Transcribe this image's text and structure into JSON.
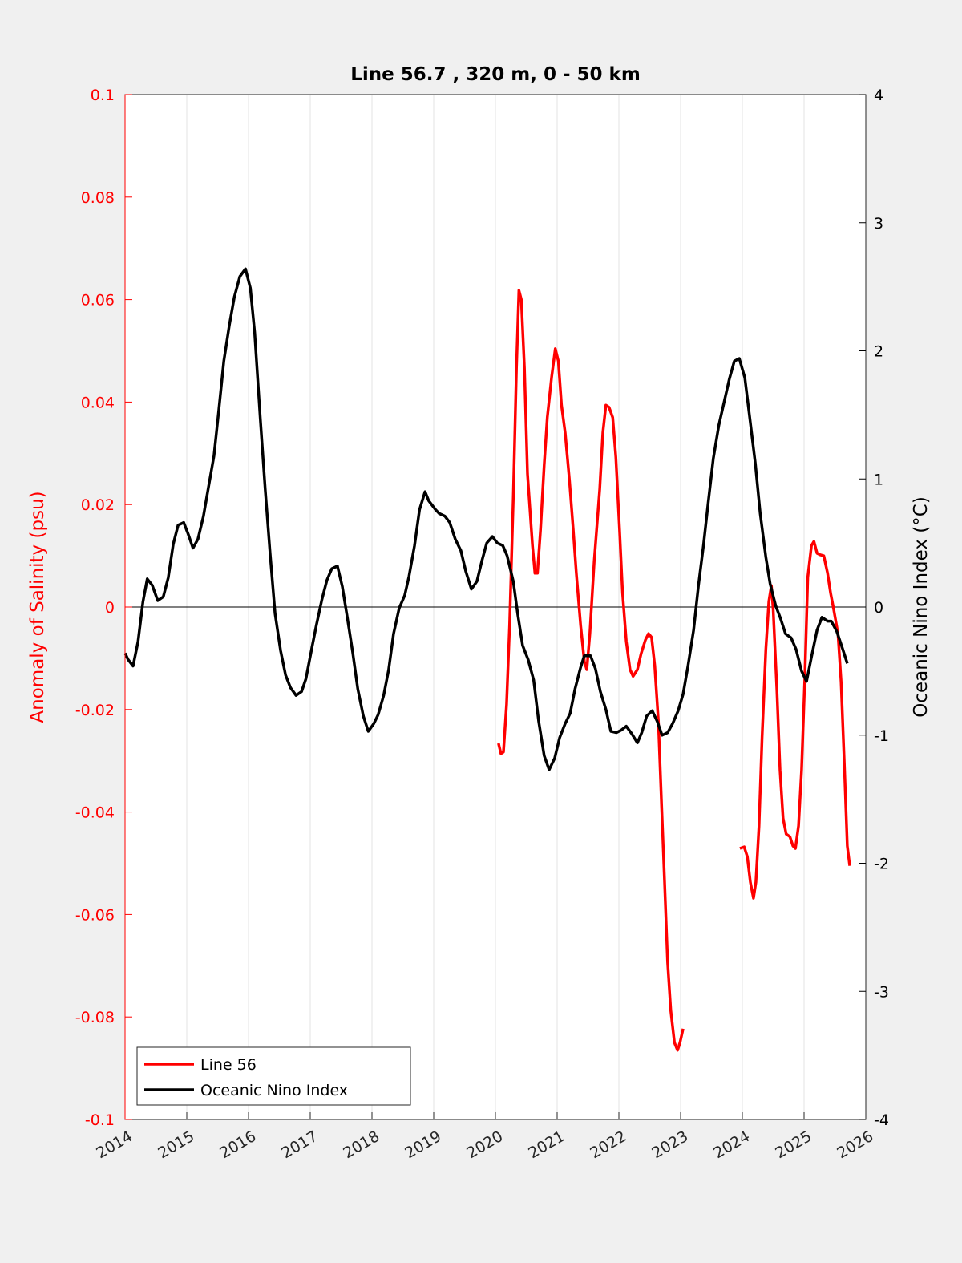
{
  "chart_data": {
    "type": "line",
    "title": "Line 56.7 , 320 m, 0 - 50 km",
    "xlabel": "",
    "ylabel_left": "Anomaly of Salinity (psu)",
    "ylabel_right": "Oceanic Nino Index (°C)",
    "xlim": [
      2014,
      2026
    ],
    "ylim_left": [
      -0.1,
      0.1
    ],
    "ylim_right": [
      -4,
      4
    ],
    "x_ticks": [
      "2014",
      "2015",
      "2016",
      "2017",
      "2018",
      "2019",
      "2020",
      "2021",
      "2022",
      "2023",
      "2024",
      "2025",
      "2026"
    ],
    "y_ticks_left": [
      "0.1",
      "0.08",
      "0.06",
      "0.04",
      "0.02",
      "0",
      "-0.02",
      "-0.04",
      "-0.06",
      "-0.08",
      "-0.1"
    ],
    "y_ticks_right": [
      "4",
      "3",
      "2",
      "1",
      "0",
      "-1",
      "-2",
      "-3",
      "-4"
    ],
    "grid": "vertical",
    "legend_position": "bottom-left",
    "colors": {
      "line56": "#ff0000",
      "oni": "#000000",
      "left_axis": "#ff0000",
      "right_axis": "#000000"
    },
    "series": [
      {
        "name": "Line 56",
        "axis": "left",
        "segments": [
          [
            [
              2020.05,
              -0.0266
            ],
            [
              2020.09,
              -0.0286
            ],
            [
              2020.13,
              -0.0283
            ],
            [
              2020.18,
              -0.019
            ],
            [
              2020.23,
              -0.0036
            ],
            [
              2020.29,
              0.0214
            ],
            [
              2020.34,
              0.0465
            ],
            [
              2020.38,
              0.0618
            ],
            [
              2020.42,
              0.06
            ],
            [
              2020.47,
              0.0465
            ],
            [
              2020.52,
              0.026
            ],
            [
              2020.6,
              0.012
            ],
            [
              2020.64,
              0.0066
            ],
            [
              2020.68,
              0.0066
            ],
            [
              2020.73,
              0.015
            ],
            [
              2020.79,
              0.0277
            ],
            [
              2020.84,
              0.037
            ],
            [
              2020.91,
              0.0449
            ],
            [
              2020.97,
              0.0504
            ],
            [
              2021.02,
              0.048
            ],
            [
              2021.07,
              0.0394
            ],
            [
              2021.13,
              0.034
            ],
            [
              2021.2,
              0.0246
            ],
            [
              2021.26,
              0.0152
            ],
            [
              2021.31,
              0.0066
            ],
            [
              2021.38,
              -0.0036
            ],
            [
              2021.44,
              -0.0106
            ],
            [
              2021.48,
              -0.0122
            ],
            [
              2021.53,
              -0.0052
            ],
            [
              2021.6,
              0.0089
            ],
            [
              2021.69,
              0.023
            ],
            [
              2021.74,
              0.034
            ],
            [
              2021.79,
              0.0394
            ],
            [
              2021.84,
              0.039
            ],
            [
              2021.9,
              0.037
            ],
            [
              2021.95,
              0.0293
            ],
            [
              2022.01,
              0.0152
            ],
            [
              2022.06,
              0.0027
            ],
            [
              2022.12,
              -0.0067
            ],
            [
              2022.18,
              -0.0122
            ],
            [
              2022.23,
              -0.0135
            ],
            [
              2022.3,
              -0.0122
            ],
            [
              2022.36,
              -0.0091
            ],
            [
              2022.43,
              -0.0064
            ],
            [
              2022.48,
              -0.0052
            ],
            [
              2022.53,
              -0.0059
            ],
            [
              2022.58,
              -0.0114
            ],
            [
              2022.64,
              -0.0224
            ],
            [
              2022.69,
              -0.038
            ],
            [
              2022.74,
              -0.0537
            ],
            [
              2022.79,
              -0.0693
            ],
            [
              2022.84,
              -0.0787
            ],
            [
              2022.9,
              -0.085
            ],
            [
              2022.95,
              -0.0865
            ],
            [
              2022.99,
              -0.085
            ],
            [
              2023.04,
              -0.0823
            ]
          ],
          [
            [
              2023.96,
              -0.0471
            ],
            [
              2024.03,
              -0.0468
            ],
            [
              2024.08,
              -0.0487
            ],
            [
              2024.13,
              -0.0537
            ],
            [
              2024.18,
              -0.0568
            ],
            [
              2024.22,
              -0.0537
            ],
            [
              2024.27,
              -0.0427
            ],
            [
              2024.32,
              -0.0255
            ],
            [
              2024.38,
              -0.0083
            ],
            [
              2024.43,
              0.0011
            ],
            [
              2024.47,
              0.0042
            ],
            [
              2024.5,
              -0.0005
            ],
            [
              2024.56,
              -0.0161
            ],
            [
              2024.61,
              -0.0318
            ],
            [
              2024.66,
              -0.0412
            ],
            [
              2024.71,
              -0.0443
            ],
            [
              2024.77,
              -0.0448
            ],
            [
              2024.82,
              -0.0466
            ],
            [
              2024.86,
              -0.0471
            ],
            [
              2024.91,
              -0.0427
            ],
            [
              2024.96,
              -0.0318
            ],
            [
              2025.01,
              -0.0146
            ],
            [
              2025.06,
              0.0058
            ],
            [
              2025.12,
              0.012
            ],
            [
              2025.16,
              0.0128
            ],
            [
              2025.21,
              0.0105
            ],
            [
              2025.26,
              0.0102
            ],
            [
              2025.32,
              0.01
            ],
            [
              2025.38,
              0.0066
            ],
            [
              2025.43,
              0.0027
            ],
            [
              2025.48,
              -0.0005
            ],
            [
              2025.55,
              -0.0052
            ],
            [
              2025.6,
              -0.0146
            ],
            [
              2025.65,
              -0.0302
            ],
            [
              2025.7,
              -0.0466
            ],
            [
              2025.74,
              -0.0505
            ]
          ]
        ]
      },
      {
        "name": "Oceanic Nino Index",
        "axis": "right",
        "segments": [
          [
            [
              2014.0,
              -0.36
            ],
            [
              2014.05,
              -0.41
            ],
            [
              2014.13,
              -0.46
            ],
            [
              2014.21,
              -0.27
            ],
            [
              2014.29,
              0.04
            ],
            [
              2014.36,
              0.22
            ],
            [
              2014.44,
              0.17
            ],
            [
              2014.53,
              0.05
            ],
            [
              2014.62,
              0.08
            ],
            [
              2014.7,
              0.23
            ],
            [
              2014.78,
              0.49
            ],
            [
              2014.86,
              0.64
            ],
            [
              2014.95,
              0.66
            ],
            [
              2015.03,
              0.56
            ],
            [
              2015.1,
              0.46
            ],
            [
              2015.18,
              0.53
            ],
            [
              2015.27,
              0.71
            ],
            [
              2015.35,
              0.93
            ],
            [
              2015.44,
              1.18
            ],
            [
              2015.52,
              1.54
            ],
            [
              2015.6,
              1.92
            ],
            [
              2015.69,
              2.2
            ],
            [
              2015.77,
              2.42
            ],
            [
              2015.86,
              2.58
            ],
            [
              2015.95,
              2.64
            ],
            [
              2016.03,
              2.49
            ],
            [
              2016.1,
              2.14
            ],
            [
              2016.19,
              1.48
            ],
            [
              2016.27,
              0.92
            ],
            [
              2016.35,
              0.42
            ],
            [
              2016.43,
              -0.05
            ],
            [
              2016.52,
              -0.34
            ],
            [
              2016.6,
              -0.53
            ],
            [
              2016.68,
              -0.63
            ],
            [
              2016.77,
              -0.69
            ],
            [
              2016.86,
              -0.66
            ],
            [
              2016.93,
              -0.56
            ],
            [
              2017.03,
              -0.31
            ],
            [
              2017.1,
              -0.14
            ],
            [
              2017.19,
              0.06
            ],
            [
              2017.27,
              0.21
            ],
            [
              2017.35,
              0.3
            ],
            [
              2017.44,
              0.32
            ],
            [
              2017.52,
              0.16
            ],
            [
              2017.6,
              -0.08
            ],
            [
              2017.69,
              -0.36
            ],
            [
              2017.77,
              -0.64
            ],
            [
              2017.86,
              -0.85
            ],
            [
              2017.94,
              -0.97
            ],
            [
              2018.03,
              -0.91
            ],
            [
              2018.1,
              -0.84
            ],
            [
              2018.19,
              -0.69
            ],
            [
              2018.27,
              -0.49
            ],
            [
              2018.35,
              -0.21
            ],
            [
              2018.44,
              -0.01
            ],
            [
              2018.53,
              0.09
            ],
            [
              2018.6,
              0.24
            ],
            [
              2018.69,
              0.48
            ],
            [
              2018.77,
              0.76
            ],
            [
              2018.86,
              0.9
            ],
            [
              2018.92,
              0.83
            ],
            [
              2019.03,
              0.76
            ],
            [
              2019.09,
              0.73
            ],
            [
              2019.18,
              0.71
            ],
            [
              2019.26,
              0.66
            ],
            [
              2019.35,
              0.53
            ],
            [
              2019.44,
              0.44
            ],
            [
              2019.52,
              0.28
            ],
            [
              2019.61,
              0.14
            ],
            [
              2019.7,
              0.2
            ],
            [
              2019.78,
              0.36
            ],
            [
              2019.86,
              0.5
            ],
            [
              2019.95,
              0.55
            ],
            [
              2020.03,
              0.5
            ],
            [
              2020.12,
              0.48
            ],
            [
              2020.19,
              0.4
            ],
            [
              2020.29,
              0.2
            ],
            [
              2020.36,
              -0.05
            ],
            [
              2020.44,
              -0.3
            ],
            [
              2020.53,
              -0.41
            ],
            [
              2020.62,
              -0.57
            ],
            [
              2020.7,
              -0.89
            ],
            [
              2020.79,
              -1.16
            ],
            [
              2020.87,
              -1.27
            ],
            [
              2020.96,
              -1.18
            ],
            [
              2021.04,
              -1.02
            ],
            [
              2021.13,
              -0.91
            ],
            [
              2021.21,
              -0.83
            ],
            [
              2021.29,
              -0.64
            ],
            [
              2021.38,
              -0.47
            ],
            [
              2021.44,
              -0.38
            ],
            [
              2021.54,
              -0.38
            ],
            [
              2021.62,
              -0.48
            ],
            [
              2021.7,
              -0.66
            ],
            [
              2021.79,
              -0.8
            ],
            [
              2021.87,
              -0.97
            ],
            [
              2021.96,
              -0.98
            ],
            [
              2022.04,
              -0.96
            ],
            [
              2022.12,
              -0.93
            ],
            [
              2022.21,
              -0.99
            ],
            [
              2022.3,
              -1.06
            ],
            [
              2022.37,
              -0.98
            ],
            [
              2022.45,
              -0.85
            ],
            [
              2022.54,
              -0.81
            ],
            [
              2022.62,
              -0.89
            ],
            [
              2022.7,
              -1.0
            ],
            [
              2022.79,
              -0.98
            ],
            [
              2022.87,
              -0.91
            ],
            [
              2022.96,
              -0.81
            ],
            [
              2023.04,
              -0.68
            ],
            [
              2023.12,
              -0.46
            ],
            [
              2023.21,
              -0.18
            ],
            [
              2023.29,
              0.17
            ],
            [
              2023.37,
              0.48
            ],
            [
              2023.45,
              0.83
            ],
            [
              2023.53,
              1.16
            ],
            [
              2023.62,
              1.42
            ],
            [
              2023.7,
              1.59
            ],
            [
              2023.79,
              1.78
            ],
            [
              2023.87,
              1.92
            ],
            [
              2023.95,
              1.94
            ],
            [
              2024.04,
              1.79
            ],
            [
              2024.12,
              1.48
            ],
            [
              2024.21,
              1.12
            ],
            [
              2024.29,
              0.73
            ],
            [
              2024.38,
              0.39
            ],
            [
              2024.45,
              0.18
            ],
            [
              2024.54,
              0.01
            ],
            [
              2024.62,
              -0.09
            ],
            [
              2024.7,
              -0.21
            ],
            [
              2024.79,
              -0.24
            ],
            [
              2024.87,
              -0.33
            ],
            [
              2024.96,
              -0.5
            ],
            [
              2025.04,
              -0.58
            ],
            [
              2025.12,
              -0.39
            ],
            [
              2025.21,
              -0.18
            ],
            [
              2025.29,
              -0.08
            ],
            [
              2025.38,
              -0.11
            ],
            [
              2025.44,
              -0.11
            ],
            [
              2025.53,
              -0.19
            ],
            [
              2025.62,
              -0.32
            ],
            [
              2025.7,
              -0.44
            ]
          ]
        ]
      }
    ]
  }
}
